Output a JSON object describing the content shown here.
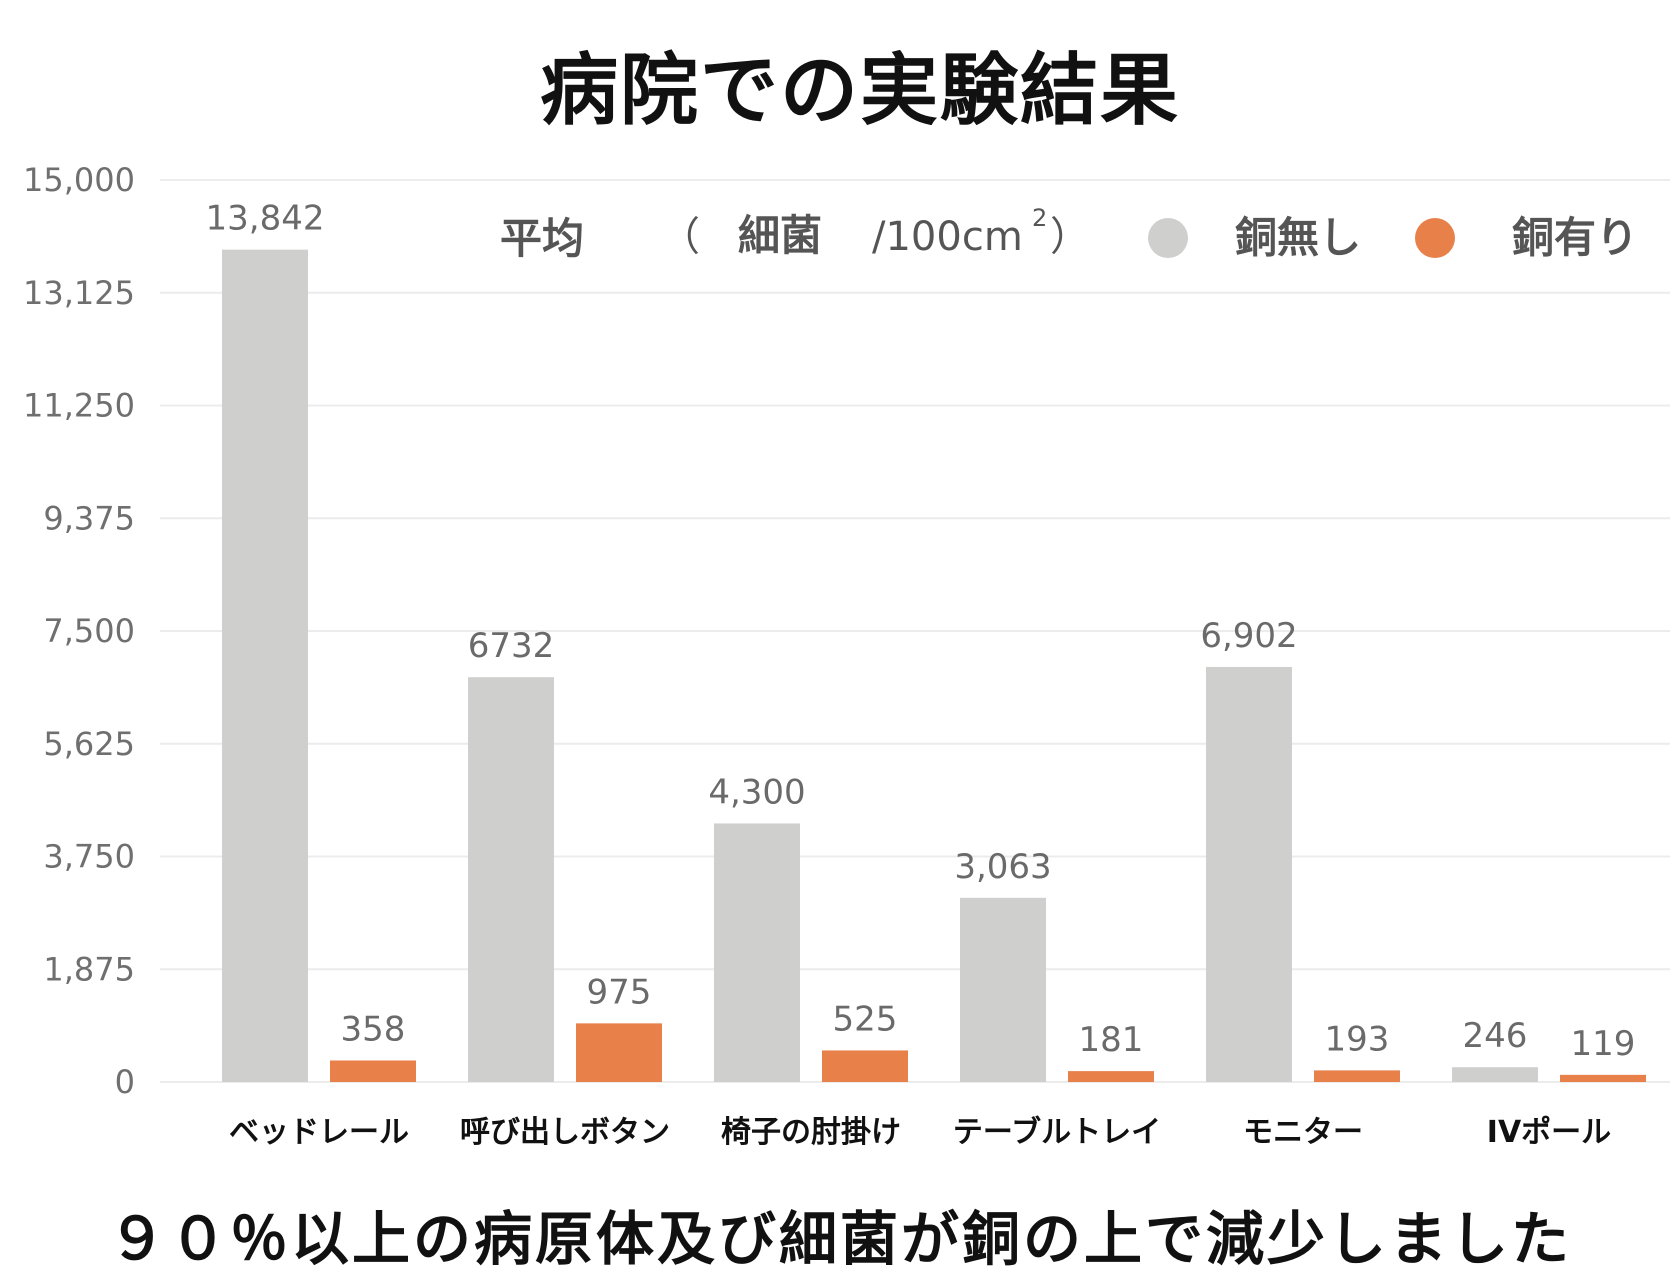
{
  "title": "病院での実験結果",
  "footer": "９０％以上の病原体及び細菌が銅の上で減少しました",
  "colors": {
    "no_copper": "#cfcfcd",
    "with_copper": "#e8804a",
    "grid": "#ececec"
  },
  "legend": {
    "heading": "平均",
    "paren_open": "（",
    "unit_word": "細菌",
    "unit_rest": "/100cm",
    "unit_sup": "2",
    "paren_close": "）",
    "placement": "top-right"
  },
  "chart_data": {
    "type": "bar",
    "categories": [
      "ベッドレール",
      "呼び出しボタン",
      "椅子の肘掛け",
      "テーブルトレイ",
      "モニター",
      "IVポール"
    ],
    "series": [
      {
        "name": "銅無し",
        "values": [
          13842,
          6732,
          4300,
          3063,
          6902,
          246
        ],
        "labels": [
          "13,842",
          "6732",
          "4,300",
          "3,063",
          "6,902",
          "246"
        ]
      },
      {
        "name": "銅有り",
        "values": [
          358,
          975,
          525,
          181,
          193,
          119
        ],
        "labels": [
          "358",
          "975",
          "525",
          "181",
          "193",
          "119"
        ]
      }
    ],
    "yticks": [
      "0",
      "1,875",
      "3,750",
      "5,625",
      "7,500",
      "9,375",
      "11,250",
      "13,125",
      "15,000"
    ],
    "ylim": [
      0,
      15000
    ],
    "grid": true
  }
}
